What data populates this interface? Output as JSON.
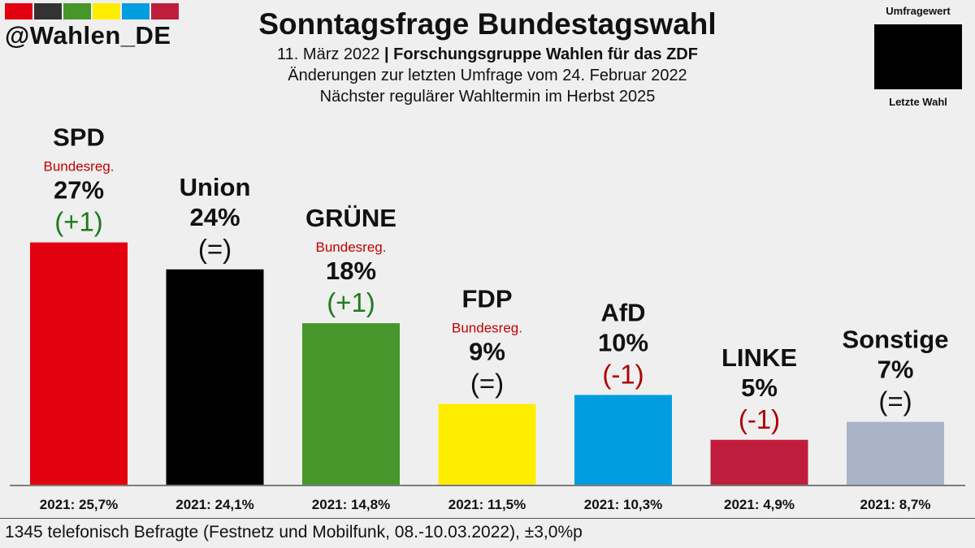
{
  "brand": {
    "handle": "@Wahlen_DE",
    "strip_colors": [
      "#e3000f",
      "#333333",
      "#46962b",
      "#ffed00",
      "#009ee0",
      "#be1e3c",
      "#a8b2c4"
    ]
  },
  "header": {
    "title": "Sonntagsfrage Bundestagswahl",
    "date": "11. März 2022",
    "separator": "|",
    "institute": "Forschungsgruppe Wahlen für das ZDF",
    "changes_note": "Änderungen zur letzten Umfrage vom 24. Februar 2022",
    "next_election": "Nächster regulärer Wahltermin im Herbst 2025"
  },
  "legend": {
    "top_label": "Umfragewert",
    "bottom_label": "Letzte Wahl"
  },
  "chart_data": {
    "type": "bar",
    "title": "Sonntagsfrage Bundestagswahl",
    "ylim": [
      0,
      30
    ],
    "unit": "%",
    "categories": [
      "SPD",
      "Union",
      "GRÜNE",
      "FDP",
      "AfD",
      "LINKE",
      "Sonstige"
    ],
    "series": [
      {
        "name": "Umfragewert",
        "values": [
          27,
          24,
          18,
          9,
          10,
          5,
          7
        ]
      }
    ],
    "parties": [
      {
        "name": "SPD",
        "value": 27,
        "value_label": "27%",
        "change": "(+1)",
        "change_color": "#1e7a1e",
        "note": "Bundesreg.",
        "color": "#e3000f",
        "last_label": "2021: 25,7%"
      },
      {
        "name": "Union",
        "value": 24,
        "value_label": "24%",
        "change": "(=)",
        "change_color": "#111111",
        "note": "",
        "color": "#000000",
        "last_label": "2021: 24,1%"
      },
      {
        "name": "GRÜNE",
        "value": 18,
        "value_label": "18%",
        "change": "(+1)",
        "change_color": "#1e7a1e",
        "note": "Bundesreg.",
        "color": "#46962b",
        "last_label": "2021: 14,8%"
      },
      {
        "name": "FDP",
        "value": 9,
        "value_label": "9%",
        "change": "(=)",
        "change_color": "#111111",
        "note": "Bundesreg.",
        "color": "#ffed00",
        "last_label": "2021: 11,5%"
      },
      {
        "name": "AfD",
        "value": 10,
        "value_label": "10%",
        "change": "(-1)",
        "change_color": "#b00000",
        "note": "",
        "color": "#009ee0",
        "last_label": "2021: 10,3%"
      },
      {
        "name": "LINKE",
        "value": 5,
        "value_label": "5%",
        "change": "(-1)",
        "change_color": "#b00000",
        "note": "",
        "color": "#be1e3c",
        "last_label": "2021: 4,9%"
      },
      {
        "name": "Sonstige",
        "value": 7,
        "value_label": "7%",
        "change": "(=)",
        "change_color": "#111111",
        "note": "",
        "color": "#aab4c8",
        "last_label": "2021: 8,7%"
      }
    ],
    "note_color": "#c00000"
  },
  "footer": {
    "text": "1345 telefonisch Befragte (Festnetz und Mobilfunk, 08.-10.03.2022), ±3,0%p"
  }
}
